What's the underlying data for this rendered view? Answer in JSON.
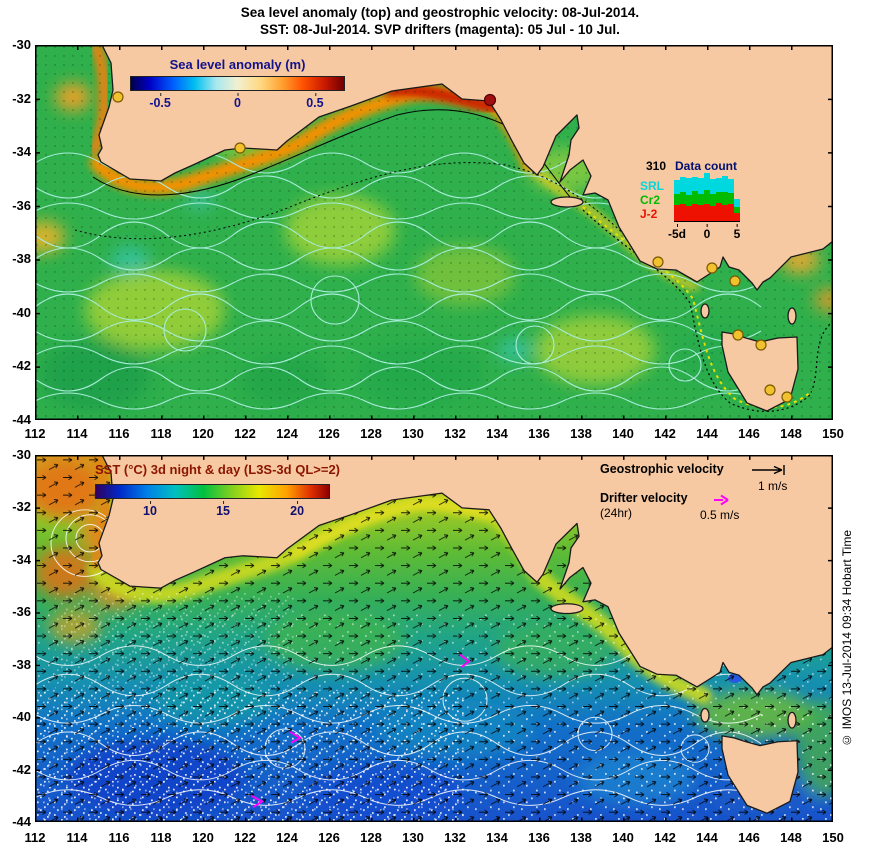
{
  "title": {
    "line1": "Sea level anomaly (top) and geostrophic velocity: 08-Jul-2014.",
    "line2": "SST: 08-Jul-2014. SVP drifters (magenta): 05 Jul - 10 Jul."
  },
  "axes": {
    "x_ticks": [
      "112",
      "114",
      "116",
      "118",
      "120",
      "122",
      "124",
      "126",
      "128",
      "130",
      "132",
      "134",
      "136",
      "138",
      "140",
      "142",
      "144",
      "146",
      "148",
      "150"
    ],
    "y_ticks": [
      "-30",
      "-32",
      "-34",
      "-36",
      "-38",
      "-40",
      "-42",
      "-44"
    ]
  },
  "top_panel": {
    "colorbar": {
      "title": "Sea level anomaly (m)",
      "ticks": [
        "-0.5",
        "0",
        "0.5"
      ]
    },
    "data_count": {
      "max_label": "310",
      "title": "Data count",
      "legend": [
        {
          "name": "SRL",
          "color": "#00d8e0"
        },
        {
          "name": "Cr2",
          "color": "#00bb00"
        },
        {
          "name": "J-2",
          "color": "#ee1000"
        }
      ],
      "x_ticks": [
        "-5d",
        "0",
        "5"
      ],
      "days": [
        {
          "j2": 105,
          "cr2": 75,
          "srl": 95
        },
        {
          "j2": 110,
          "cr2": 80,
          "srl": 100
        },
        {
          "j2": 100,
          "cr2": 70,
          "srl": 110
        },
        {
          "j2": 115,
          "cr2": 85,
          "srl": 95
        },
        {
          "j2": 105,
          "cr2": 75,
          "srl": 105
        },
        {
          "j2": 110,
          "cr2": 90,
          "srl": 110
        },
        {
          "j2": 100,
          "cr2": 80,
          "srl": 100
        },
        {
          "j2": 120,
          "cr2": 70,
          "srl": 95
        },
        {
          "j2": 105,
          "cr2": 85,
          "srl": 105
        },
        {
          "j2": 110,
          "cr2": 75,
          "srl": 95
        },
        {
          "j2": 55,
          "cr2": 40,
          "srl": 50
        }
      ]
    }
  },
  "bottom_panel": {
    "sst_label": "SST (°C) 3d night & day (L3S-3d QL>=2)",
    "colorbar_ticks": [
      "10",
      "15",
      "20"
    ],
    "geostrophic_label": "Geostrophic velocity",
    "geostrophic_scale": "1 m/s",
    "drifter_label": "Drifter velocity",
    "drifter_sublabel": "(24hr)",
    "drifter_scale": "0.5 m/s"
  },
  "watermark": "© IMOS 13-Jul-2014 09:34 Hobart Time",
  "colors": {
    "land": "#f7c9a2",
    "sla_title_navy": "#12128c",
    "sst_title_red": "#8b1500",
    "drifter_magenta": "#ff00ff",
    "srl_cyan": "#00d8e0",
    "cr2_green": "#00bb00",
    "j2_red": "#ee1000"
  },
  "chart_data": [
    {
      "type": "heatmap",
      "name": "sea_level_anomaly_and_geostrophic_velocity",
      "date": "08-Jul-2014",
      "xlim": [
        112,
        150
      ],
      "ylim": [
        -44,
        -30
      ],
      "x_ticks": [
        112,
        114,
        116,
        118,
        120,
        122,
        124,
        126,
        128,
        130,
        132,
        134,
        136,
        138,
        140,
        142,
        144,
        146,
        148,
        150
      ],
      "y_ticks": [
        -30,
        -32,
        -34,
        -36,
        -38,
        -40,
        -42,
        -44
      ],
      "colorbar": {
        "label": "Sea level anomaly (m)",
        "tick_values": [
          -0.5,
          0,
          0.5
        ],
        "approx_range": [
          -0.7,
          0.7
        ]
      },
      "features": [
        "positive SLA (orange to dark red) band hugging the southern Australian coast from Cape Leeuwin to ~137E, strongest near 132-135E",
        "near-zero / weakly positive SLA (green, 0 to 0.1 m) over the open ocean with pale cyan SLA contour lines",
        "yellow circular drifter/float markers near 116E -32S, 122E -34S, and around Bass Strait and Tasmania; one dark red marker near 133.5E -32S",
        "dotted yellow-black shelf-edge contour around Victoria and Tasmania"
      ],
      "inset_histogram": {
        "type": "bar",
        "title": "Data count",
        "ymax_label": 310,
        "x_tick_labels": [
          "-5d",
          "0",
          "5"
        ],
        "stack_order_bottom_to_top": [
          "J-2",
          "Cr2",
          "SRL"
        ],
        "series": [
          {
            "name": "J-2",
            "color": "#ee1000",
            "values": [
              105,
              110,
              100,
              115,
              105,
              110,
              100,
              120,
              105,
              110,
              55
            ]
          },
          {
            "name": "Cr2",
            "color": "#00bb00",
            "values": [
              75,
              80,
              70,
              85,
              75,
              90,
              80,
              70,
              85,
              75,
              40
            ]
          },
          {
            "name": "SRL",
            "color": "#00d8e0",
            "values": [
              95,
              100,
              110,
              95,
              105,
              110,
              100,
              95,
              105,
              95,
              50
            ]
          }
        ]
      }
    },
    {
      "type": "heatmap",
      "name": "sst_map",
      "title": "SST (°C) 3d night & day (L3S-3d QL>=2)",
      "date": "08-Jul-2014",
      "xlim": [
        112,
        150
      ],
      "ylim": [
        -44,
        -30
      ],
      "colorbar": {
        "tick_values": [
          10,
          15,
          20
        ],
        "approx_range": [
          8.5,
          22.5
        ]
      },
      "vectors": {
        "geostrophic_scale": "1 m/s",
        "drifter_scale": "0.5 m/s",
        "drifter_window": "24hr"
      },
      "features": [
        "SST decreases southward from ~20-21C (orange/yellow along the coast and northwest) to ~10C (deep blue) near -44S",
        "warm Leeuwin Current eddy field with white contour swirls west of Cape Leeuwin",
        "dense black geostrophic velocity arrows over the ocean, white SST contours, white speckle where cloud gaps exist",
        "magenta SVP drifter velocity marks near 132E -37.5S, 124.5E -40.5S, 122.5E -43S"
      ]
    }
  ]
}
